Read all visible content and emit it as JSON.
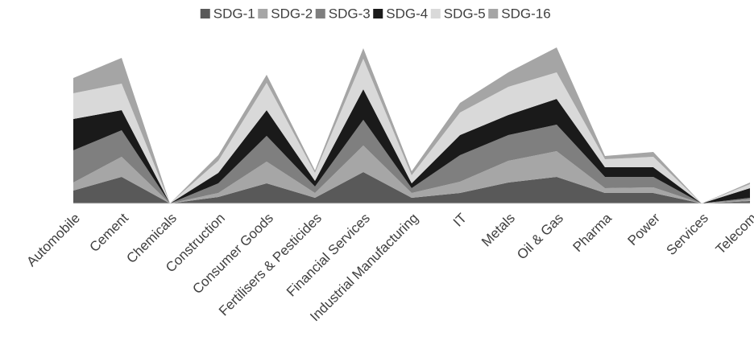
{
  "chart_data": {
    "type": "stacked-area",
    "categories": [
      "Automobile",
      "Cement",
      "Chemicals",
      "Construction",
      "Consumer Goods",
      "Fertilisers & Pesticides",
      "Financial Services",
      "Industrial Manufacturing",
      "IT",
      "Metals",
      "Oil & Gas",
      "Pharma",
      "Power",
      "Services",
      "Telecom"
    ],
    "series": [
      {
        "name": "SDG-1",
        "color": "#595959",
        "values": [
          16,
          33,
          0,
          8,
          25,
          7,
          39,
          7,
          13,
          26,
          33,
          13,
          13,
          0,
          3
        ]
      },
      {
        "name": "SDG-2",
        "color": "#a6a6a6",
        "values": [
          10,
          25,
          0,
          5,
          27,
          6,
          33,
          6,
          14,
          27,
          32,
          6,
          7,
          0,
          2
        ]
      },
      {
        "name": "SDG-3",
        "color": "#7f7f7f",
        "values": [
          40,
          33,
          0,
          12,
          32,
          8,
          32,
          6,
          33,
          32,
          33,
          14,
          13,
          0,
          2
        ]
      },
      {
        "name": "SDG-4",
        "color": "#1a1a1a",
        "values": [
          39,
          25,
          0,
          13,
          32,
          7,
          38,
          6,
          25,
          25,
          32,
          12,
          12,
          0,
          12
        ]
      },
      {
        "name": "SDG-5",
        "color": "#d9d9d9",
        "values": [
          32,
          33,
          0,
          15,
          34,
          10,
          38,
          10,
          28,
          35,
          33,
          10,
          13,
          0,
          5
        ]
      },
      {
        "name": "SDG-16",
        "color": "#a5a5a5",
        "values": [
          19,
          32,
          0,
          7,
          10,
          3,
          13,
          5,
          12,
          18,
          31,
          4,
          6,
          0,
          2
        ]
      }
    ],
    "legend": "top"
  }
}
